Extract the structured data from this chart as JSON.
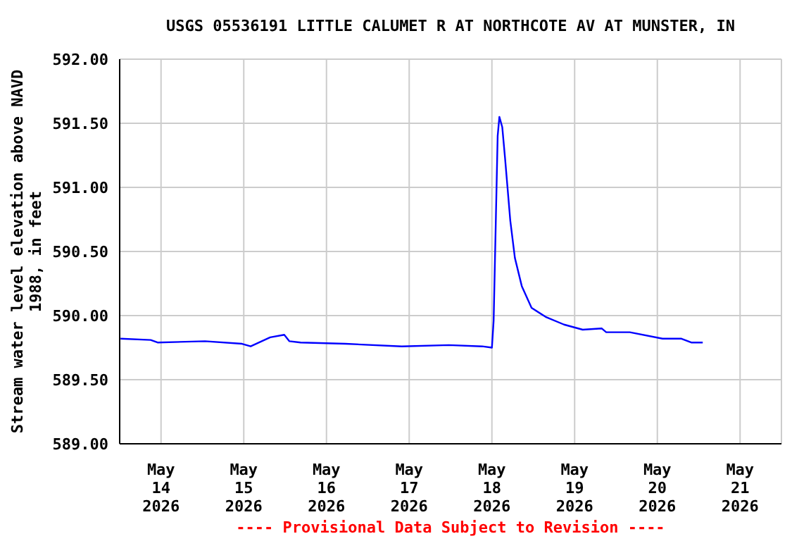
{
  "chart_data": {
    "type": "line",
    "title": "USGS 05536191 LITTLE CALUMET R AT NORTHCOTE AV AT MUNSTER, IN",
    "ylabel": "Stream water level elevation above NAVD\n1988, in feet",
    "annotations": [
      "---- Provisional Data Subject to Revision ----"
    ],
    "series": [
      {
        "color": "#0000ff",
        "x": [
          "2026-05-13T12:15",
          "2026-05-13T21:00",
          "2026-05-13T23:00",
          "2026-05-14T12:45",
          "2026-05-14T23:30",
          "2026-05-15T02:00",
          "2026-05-15T07:40",
          "2026-05-15T11:45",
          "2026-05-15T13:15",
          "2026-05-15T16:30",
          "2026-05-16T05:30",
          "2026-05-16T21:50",
          "2026-05-17T11:30",
          "2026-05-17T21:10",
          "2026-05-18T00:00",
          "2026-05-18T00:30",
          "2026-05-18T01:10",
          "2026-05-18T01:40",
          "2026-05-18T02:10",
          "2026-05-18T03:00",
          "2026-05-18T03:50",
          "2026-05-18T05:20",
          "2026-05-18T06:40",
          "2026-05-18T08:40",
          "2026-05-18T11:30",
          "2026-05-18T15:35",
          "2026-05-18T20:55",
          "2026-05-19T02:20",
          "2026-05-19T07:50",
          "2026-05-19T09:10",
          "2026-05-19T16:00",
          "2026-05-20T01:30",
          "2026-05-20T07:00",
          "2026-05-20T09:50",
          "2026-05-20T13:10"
        ],
        "values": [
          589.82,
          589.81,
          589.79,
          589.8,
          589.78,
          589.76,
          589.83,
          589.85,
          589.8,
          589.79,
          589.78,
          589.76,
          589.77,
          589.76,
          589.75,
          589.96,
          590.78,
          591.4,
          591.55,
          591.47,
          591.22,
          590.74,
          590.45,
          590.23,
          590.06,
          589.99,
          589.93,
          589.89,
          589.9,
          589.87,
          589.87,
          589.82,
          589.82,
          589.79,
          589.79
        ]
      }
    ],
    "xlim": [
      "2026-05-13T12:00",
      "2026-05-21T12:00"
    ],
    "xticks": [
      {
        "value": "2026-05-14",
        "label": "May\n14\n2026"
      },
      {
        "value": "2026-05-15",
        "label": "May\n15\n2026"
      },
      {
        "value": "2026-05-16",
        "label": "May\n16\n2026"
      },
      {
        "value": "2026-05-17",
        "label": "May\n17\n2026"
      },
      {
        "value": "2026-05-18",
        "label": "May\n18\n2026"
      },
      {
        "value": "2026-05-19",
        "label": "May\n19\n2026"
      },
      {
        "value": "2026-05-20",
        "label": "May\n20\n2026"
      },
      {
        "value": "2026-05-21",
        "label": "May\n21\n2026"
      }
    ],
    "ylim": [
      589,
      592
    ],
    "yticks": [
      {
        "value": 589,
        "label": "589.00"
      },
      {
        "value": 589.5,
        "label": "589.50"
      },
      {
        "value": 590,
        "label": "590.00"
      },
      {
        "value": 590.5,
        "label": "590.50"
      },
      {
        "value": 591,
        "label": "591.00"
      },
      {
        "value": 591.5,
        "label": "591.50"
      },
      {
        "value": 592,
        "label": "592.00"
      }
    ],
    "grid": true,
    "marker": "none",
    "line_style": "solid"
  }
}
